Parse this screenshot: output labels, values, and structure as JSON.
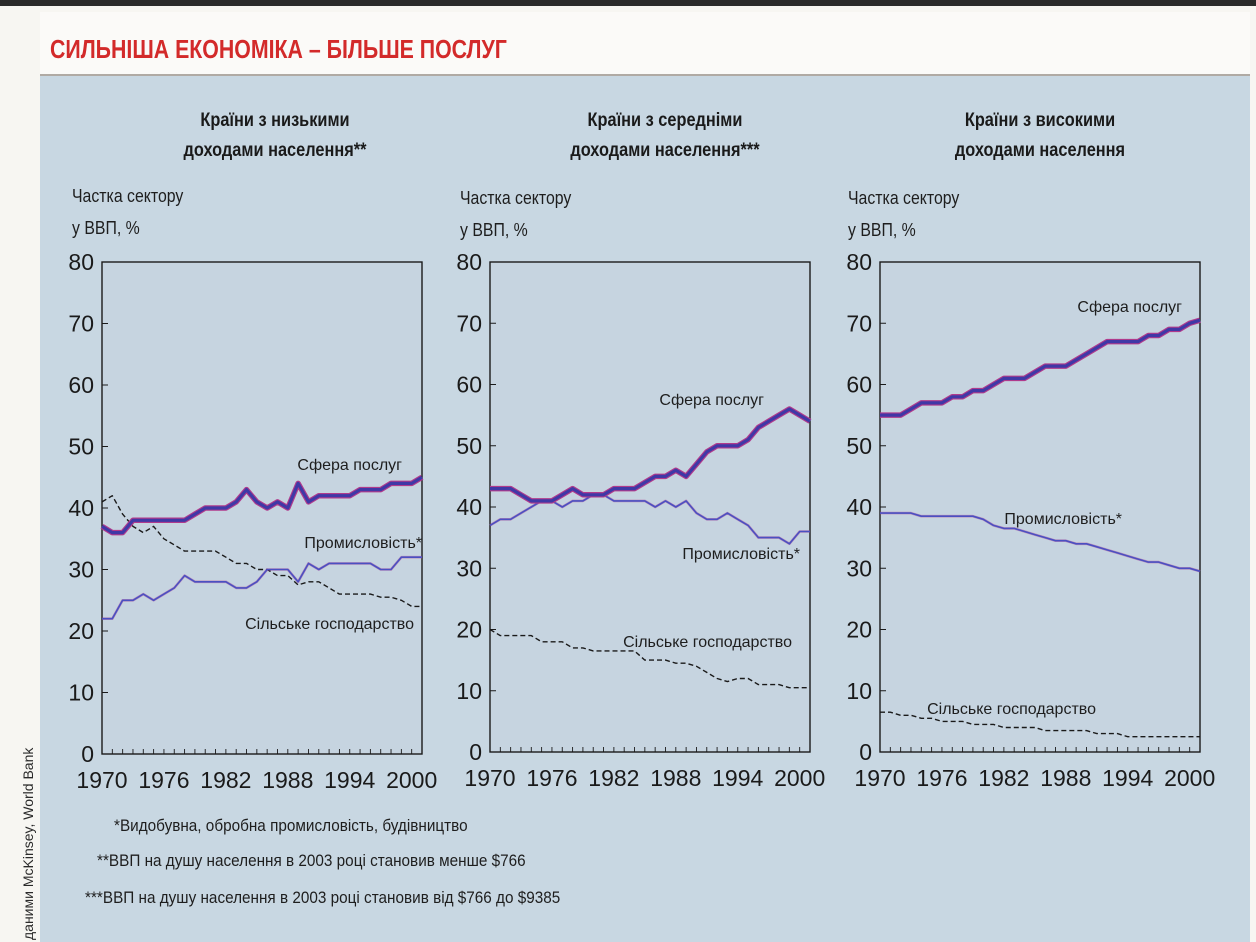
{
  "header": {
    "title": "СИЛЬНІША ЕКОНОМІКА – БІЛЬШЕ ПОСЛУГ"
  },
  "colors": {
    "services": "#4038a6",
    "services_edge": "#b03a8c",
    "industry": "#4a50c2",
    "agriculture": "#1a1a1a",
    "plot_bg": "#c6d4e0"
  },
  "footnotes": [
    "*Видобувна, обробна промисловість, будівництво",
    "**ВВП на душу населення в 2003 році становив менше $766",
    "***ВВП на душу населення в 2003 році становив від $766 до $9385"
  ],
  "source": "даними McKinsey, World Bank",
  "charts": [
    {
      "title_line1": "Країни з низькими",
      "title_line2": "доходами населення**",
      "ylabel_line1": "Частка сектору",
      "ylabel_line2": "у ВВП, %",
      "services_label": "Сфера послуг",
      "industry_label": "Промисловість*",
      "agriculture_label": "Сільське господарство"
    },
    {
      "title_line1": "Країни з середніми",
      "title_line2": "доходами населення***",
      "ylabel_line1": "Частка сектору",
      "ylabel_line2": "у ВВП, %",
      "services_label": "Сфера послуг",
      "industry_label": "Промисловість*",
      "agriculture_label": "Сільське господарство"
    },
    {
      "title_line1": "Країни з високими",
      "title_line2": "доходами населення",
      "ylabel_line1": "Частка сектору",
      "ylabel_line2": "у ВВП, %",
      "services_label": "Сфера послуг",
      "industry_label": "Промисловість*",
      "agriculture_label": "Сільське господарство"
    }
  ],
  "chart_data": [
    {
      "type": "line",
      "xlim": [
        1970,
        2001
      ],
      "ylim": [
        0,
        80
      ],
      "xticks": [
        "1970",
        "1976",
        "1982",
        "1988",
        "1994",
        "2000"
      ],
      "yticks": [
        "0",
        "10",
        "20",
        "30",
        "40",
        "50",
        "60",
        "70",
        "80"
      ],
      "x": [
        1970,
        1971,
        1972,
        1973,
        1974,
        1975,
        1976,
        1977,
        1978,
        1979,
        1980,
        1981,
        1982,
        1983,
        1984,
        1985,
        1986,
        1987,
        1988,
        1989,
        1990,
        1991,
        1992,
        1993,
        1994,
        1995,
        1996,
        1997,
        1998,
        1999,
        2000,
        2001
      ],
      "series": [
        {
          "name": "Сфера послуг",
          "style": "services",
          "values": [
            37,
            36,
            36,
            38,
            38,
            38,
            38,
            38,
            38,
            39,
            40,
            40,
            40,
            41,
            43,
            41,
            40,
            41,
            40,
            44,
            41,
            42,
            42,
            42,
            42,
            43,
            43,
            43,
            44,
            44,
            44,
            45
          ]
        },
        {
          "name": "Промисловість*",
          "style": "industry",
          "values": [
            22,
            22,
            25,
            25,
            26,
            25,
            26,
            27,
            29,
            28,
            28,
            28,
            28,
            27,
            27,
            28,
            30,
            30,
            30,
            28,
            31,
            30,
            31,
            31,
            31,
            31,
            31,
            30,
            30,
            32,
            32,
            32
          ]
        },
        {
          "name": "Сільське господарство",
          "style": "agriculture",
          "values": [
            41,
            42,
            39,
            37,
            36,
            37,
            35,
            34,
            33,
            33,
            33,
            33,
            32,
            31,
            31,
            30,
            30,
            29,
            29,
            27.5,
            28,
            28,
            27,
            26,
            26,
            26,
            26,
            25.5,
            25.5,
            25,
            24,
            24
          ]
        }
      ]
    },
    {
      "type": "line",
      "xlim": [
        1970,
        2001
      ],
      "ylim": [
        0,
        80
      ],
      "xticks": [
        "1970",
        "1976",
        "1982",
        "1988",
        "1994",
        "2000"
      ],
      "yticks": [
        "0",
        "10",
        "20",
        "30",
        "40",
        "50",
        "60",
        "70",
        "80"
      ],
      "x": [
        1970,
        1971,
        1972,
        1973,
        1974,
        1975,
        1976,
        1977,
        1978,
        1979,
        1980,
        1981,
        1982,
        1983,
        1984,
        1985,
        1986,
        1987,
        1988,
        1989,
        1990,
        1991,
        1992,
        1993,
        1994,
        1995,
        1996,
        1997,
        1998,
        1999,
        2000,
        2001
      ],
      "series": [
        {
          "name": "Сфера послуг",
          "style": "services",
          "values": [
            43,
            43,
            43,
            42,
            41,
            41,
            41,
            42,
            43,
            42,
            42,
            42,
            43,
            43,
            43,
            44,
            45,
            45,
            46,
            45,
            47,
            49,
            50,
            50,
            50,
            51,
            53,
            54,
            55,
            56,
            55,
            54
          ]
        },
        {
          "name": "Промисловість*",
          "style": "industry",
          "values": [
            37,
            38,
            38,
            39,
            40,
            41,
            41,
            40,
            41,
            41,
            42,
            42,
            41,
            41,
            41,
            41,
            40,
            41,
            40,
            41,
            39,
            38,
            38,
            39,
            38,
            37,
            35,
            35,
            35,
            34,
            36,
            36
          ]
        },
        {
          "name": "Сільське господарство",
          "style": "agriculture",
          "values": [
            20,
            19,
            19,
            19,
            19,
            18,
            18,
            18,
            17,
            17,
            16.5,
            16.5,
            16.5,
            16.5,
            16.5,
            15,
            15,
            15,
            14.5,
            14.5,
            14,
            13,
            12,
            11.5,
            12,
            12,
            11,
            11,
            11,
            10.5,
            10.5,
            10.5
          ]
        }
      ]
    },
    {
      "type": "line",
      "xlim": [
        1970,
        2001
      ],
      "ylim": [
        0,
        80
      ],
      "xticks": [
        "1970",
        "1976",
        "1982",
        "1988",
        "1994",
        "2000"
      ],
      "yticks": [
        "0",
        "10",
        "20",
        "30",
        "40",
        "50",
        "60",
        "70",
        "80"
      ],
      "x": [
        1970,
        1971,
        1972,
        1973,
        1974,
        1975,
        1976,
        1977,
        1978,
        1979,
        1980,
        1981,
        1982,
        1983,
        1984,
        1985,
        1986,
        1987,
        1988,
        1989,
        1990,
        1991,
        1992,
        1993,
        1994,
        1995,
        1996,
        1997,
        1998,
        1999,
        2000,
        2001
      ],
      "series": [
        {
          "name": "Сфера послуг",
          "style": "services",
          "values": [
            55,
            55,
            55,
            56,
            57,
            57,
            57,
            58,
            58,
            59,
            59,
            60,
            61,
            61,
            61,
            62,
            63,
            63,
            63,
            64,
            65,
            66,
            67,
            67,
            67,
            67,
            68,
            68,
            69,
            69,
            70,
            70.5
          ]
        },
        {
          "name": "Промисловість*",
          "style": "industry",
          "values": [
            39,
            39,
            39,
            39,
            38.5,
            38.5,
            38.5,
            38.5,
            38.5,
            38.5,
            38,
            37,
            36.5,
            36.5,
            36,
            35.5,
            35,
            34.5,
            34.5,
            34,
            34,
            33.5,
            33,
            32.5,
            32,
            31.5,
            31,
            31,
            30.5,
            30,
            30,
            29.5
          ]
        },
        {
          "name": "Сільське господарство",
          "style": "agriculture",
          "values": [
            6.5,
            6.5,
            6,
            6,
            5.5,
            5.5,
            5,
            5,
            5,
            4.5,
            4.5,
            4.5,
            4,
            4,
            4,
            4,
            3.5,
            3.5,
            3.5,
            3.5,
            3.5,
            3,
            3,
            3,
            2.5,
            2.5,
            2.5,
            2.5,
            2.5,
            2.5,
            2.5,
            2.5
          ]
        }
      ]
    }
  ]
}
